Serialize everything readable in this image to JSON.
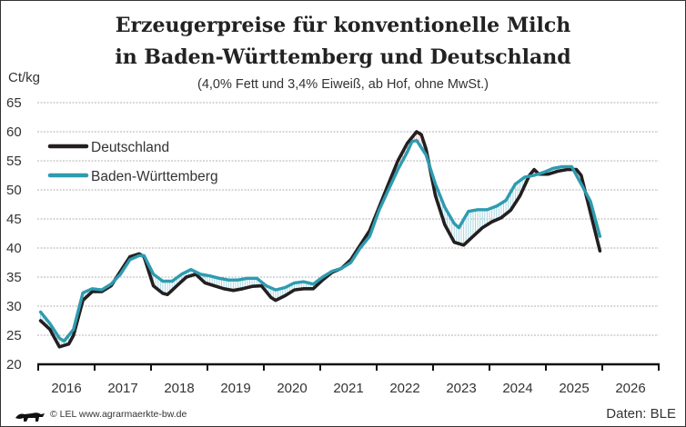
{
  "title_line1": "Erzeugerpreise für konventionelle Milch",
  "title_line2": "in Baden-Württemberg und Deutschland",
  "subtitle": "(4,0% Fett und 3,4% Eiweiß, ab Hof, ohne MwSt.)",
  "source": "Daten: BLE",
  "credit": "© LEL www.agrarmaerkte-bw.de",
  "logo_text": "",
  "chart_data": {
    "type": "line",
    "ylabel": "Ct/kg",
    "ylim": [
      20,
      65
    ],
    "yticks": [
      "20",
      "25",
      "30",
      "35",
      "40",
      "45",
      "50",
      "55",
      "60",
      "65"
    ],
    "xlim": [
      "2016-01",
      "2026-12"
    ],
    "xtick_labels": [
      "2016",
      "2017",
      "2018",
      "2019",
      "2020",
      "2021",
      "2022",
      "2023",
      "2024",
      "2025",
      "2026"
    ],
    "grid": true,
    "legend_placement": "top-left",
    "series": [
      {
        "name": "Deutschland",
        "color": "#231f20",
        "points": [
          [
            "2016-01",
            27.5
          ],
          [
            "2016-03",
            26
          ],
          [
            "2016-05",
            23
          ],
          [
            "2016-07",
            23.5
          ],
          [
            "2016-08",
            25
          ],
          [
            "2016-10",
            31
          ],
          [
            "2016-12",
            32.5
          ],
          [
            "2017-02",
            32.5
          ],
          [
            "2017-04",
            33.5
          ],
          [
            "2017-06",
            36
          ],
          [
            "2017-08",
            38.5
          ],
          [
            "2017-10",
            39
          ],
          [
            "2017-11",
            38.5
          ],
          [
            "2018-01",
            33.5
          ],
          [
            "2018-03",
            32.2
          ],
          [
            "2018-04",
            32
          ],
          [
            "2018-06",
            33.5
          ],
          [
            "2018-08",
            35
          ],
          [
            "2018-10",
            35.5
          ],
          [
            "2018-12",
            34
          ],
          [
            "2019-02",
            33.5
          ],
          [
            "2019-04",
            33
          ],
          [
            "2019-06",
            32.7
          ],
          [
            "2019-08",
            33
          ],
          [
            "2019-10",
            33.4
          ],
          [
            "2019-12",
            33.5
          ],
          [
            "2020-02",
            31.5
          ],
          [
            "2020-03",
            31
          ],
          [
            "2020-05",
            31.8
          ],
          [
            "2020-07",
            32.8
          ],
          [
            "2020-09",
            33
          ],
          [
            "2020-11",
            33
          ],
          [
            "2021-01",
            34.5
          ],
          [
            "2021-03",
            35.8
          ],
          [
            "2021-05",
            36.5
          ],
          [
            "2021-07",
            38
          ],
          [
            "2021-09",
            40.5
          ],
          [
            "2021-11",
            43
          ],
          [
            "2022-01",
            47
          ],
          [
            "2022-03",
            51
          ],
          [
            "2022-05",
            55
          ],
          [
            "2022-07",
            58
          ],
          [
            "2022-09",
            60
          ],
          [
            "2022-10",
            59.5
          ],
          [
            "2022-11",
            57
          ],
          [
            "2023-01",
            49
          ],
          [
            "2023-03",
            44
          ],
          [
            "2023-05",
            41
          ],
          [
            "2023-07",
            40.5
          ],
          [
            "2023-09",
            42
          ],
          [
            "2023-11",
            43.5
          ],
          [
            "2024-01",
            44.5
          ],
          [
            "2024-03",
            45.2
          ],
          [
            "2024-05",
            46.5
          ],
          [
            "2024-07",
            49
          ],
          [
            "2024-09",
            52.5
          ],
          [
            "2024-10",
            53.5
          ],
          [
            "2024-11",
            52.7
          ],
          [
            "2025-01",
            52.7
          ],
          [
            "2025-03",
            53.2
          ],
          [
            "2025-05",
            53.5
          ],
          [
            "2025-07",
            53.5
          ],
          [
            "2025-08",
            52.5
          ],
          [
            "2025-10",
            46
          ],
          [
            "2025-12",
            39.5
          ]
        ]
      },
      {
        "name": "Baden-Württemberg",
        "color": "#2e9bb0",
        "points": [
          [
            "2016-01",
            29
          ],
          [
            "2016-03",
            27
          ],
          [
            "2016-05",
            24.5
          ],
          [
            "2016-06",
            24
          ],
          [
            "2016-08",
            26
          ],
          [
            "2016-10",
            32.3
          ],
          [
            "2016-12",
            33
          ],
          [
            "2017-02",
            32.8
          ],
          [
            "2017-04",
            33.8
          ],
          [
            "2017-06",
            35.5
          ],
          [
            "2017-08",
            38
          ],
          [
            "2017-10",
            38.7
          ],
          [
            "2017-11",
            38.7
          ],
          [
            "2018-01",
            35.5
          ],
          [
            "2018-03",
            34.3
          ],
          [
            "2018-05",
            34.3
          ],
          [
            "2018-07",
            35.5
          ],
          [
            "2018-09",
            36.3
          ],
          [
            "2018-11",
            35.5
          ],
          [
            "2019-01",
            35.2
          ],
          [
            "2019-03",
            34.8
          ],
          [
            "2019-05",
            34.5
          ],
          [
            "2019-07",
            34.5
          ],
          [
            "2019-09",
            34.8
          ],
          [
            "2019-11",
            34.8
          ],
          [
            "2020-01",
            33.5
          ],
          [
            "2020-03",
            32.8
          ],
          [
            "2020-05",
            33.2
          ],
          [
            "2020-07",
            34
          ],
          [
            "2020-09",
            34.2
          ],
          [
            "2020-11",
            33.8
          ],
          [
            "2021-01",
            35
          ],
          [
            "2021-03",
            36
          ],
          [
            "2021-05",
            36.5
          ],
          [
            "2021-07",
            37.5
          ],
          [
            "2021-09",
            40
          ],
          [
            "2021-11",
            42
          ],
          [
            "2022-01",
            46.5
          ],
          [
            "2022-03",
            50
          ],
          [
            "2022-05",
            53.5
          ],
          [
            "2022-07",
            56.5
          ],
          [
            "2022-08",
            58.3
          ],
          [
            "2022-09",
            58.5
          ],
          [
            "2022-11",
            56
          ],
          [
            "2023-01",
            51
          ],
          [
            "2023-03",
            47
          ],
          [
            "2023-05",
            44.2
          ],
          [
            "2023-06",
            43.5
          ],
          [
            "2023-08",
            46.3
          ],
          [
            "2023-10",
            46.6
          ],
          [
            "2023-12",
            46.6
          ],
          [
            "2024-02",
            47.2
          ],
          [
            "2024-04",
            48.2
          ],
          [
            "2024-06",
            51
          ],
          [
            "2024-08",
            52.2
          ],
          [
            "2024-10",
            52.5
          ],
          [
            "2024-12",
            53
          ],
          [
            "2025-02",
            53.7
          ],
          [
            "2025-04",
            54
          ],
          [
            "2025-06",
            54
          ],
          [
            "2025-08",
            51
          ],
          [
            "2025-10",
            48
          ],
          [
            "2025-12",
            42
          ]
        ]
      }
    ],
    "difference_fill": {
      "bw_higher_color": "#a9d7e2",
      "de_higher_color": "#f0b8b8"
    }
  }
}
